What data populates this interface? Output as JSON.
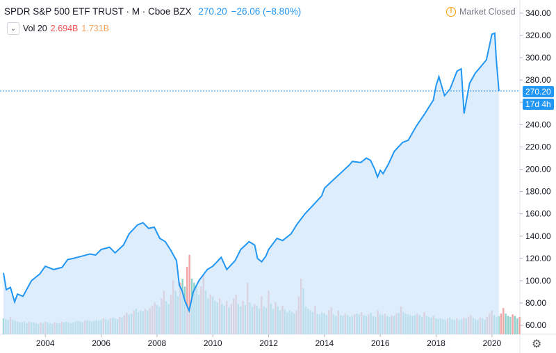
{
  "header": {
    "symbol": "SPDR S&P 500 ETF TRUST · M · Cboe BZX",
    "last": "270.20",
    "change": "−26.06 (−8.80%)"
  },
  "volume_legend": {
    "toggle_icon": "chevron-down-icon",
    "label": "Vol 20",
    "value1": "2.694B",
    "value2": "1.731B"
  },
  "market_status": {
    "icon": "alert-circle-icon",
    "text": "Market Closed"
  },
  "price_badge": "270.20",
  "countdown_badge": "17d 4h",
  "settings_icon": "gear-icon",
  "colors": {
    "line": "#2196f3",
    "fill": "#cfe6fb",
    "vol_up": "#80cbc4",
    "vol_down": "#ef9a9a",
    "axis": "#787b86"
  },
  "chart_data": {
    "type": "area",
    "x_ticks": [
      "2004",
      "2006",
      "2008",
      "2010",
      "2012",
      "2014",
      "2016",
      "2018",
      "2020"
    ],
    "y_ticks": [
      "60.00",
      "80.00",
      "100.00",
      "120.00",
      "140.00",
      "160.00",
      "180.00",
      "200.00",
      "220.00",
      "240.00",
      "260.00",
      "280.00",
      "300.00",
      "320.00",
      "340.00"
    ],
    "ylim": [
      52,
      348
    ],
    "xlim": [
      2002.5,
      2021.0
    ],
    "series": [
      {
        "values_x": [
          2002.5,
          2002.6,
          2002.75,
          2002.9,
          2003.0,
          2003.2,
          2003.5,
          2003.8,
          2004.0,
          2004.3,
          2004.6,
          2004.8,
          2005.0,
          2005.3,
          2005.6,
          2005.8,
          2006.0,
          2006.3,
          2006.5,
          2006.8,
          2007.0,
          2007.3,
          2007.5,
          2007.7,
          2007.9,
          2008.1,
          2008.3,
          2008.5,
          2008.7,
          2008.8,
          2008.9,
          2009.0,
          2009.15,
          2009.3,
          2009.5,
          2009.8,
          2010.0,
          2010.3,
          2010.5,
          2010.8,
          2011.0,
          2011.3,
          2011.5,
          2011.6,
          2011.75,
          2011.9,
          2012.0,
          2012.3,
          2012.5,
          2012.8,
          2013.0,
          2013.3,
          2013.6,
          2013.9,
          2014.0,
          2014.3,
          2014.6,
          2014.9,
          2015.0,
          2015.3,
          2015.5,
          2015.65,
          2015.8,
          2015.9,
          2016.0,
          2016.1,
          2016.3,
          2016.5,
          2016.8,
          2017.0,
          2017.3,
          2017.6,
          2017.9,
          2018.0,
          2018.1,
          2018.3,
          2018.5,
          2018.75,
          2018.9,
          2019.0,
          2019.2,
          2019.4,
          2019.6,
          2019.8,
          2020.0,
          2020.1,
          2020.15,
          2020.25
        ],
        "values": [
          107,
          92,
          94,
          81,
          88,
          86,
          100,
          106,
          113,
          110,
          112,
          119,
          120,
          122,
          124,
          123,
          128,
          130,
          125,
          132,
          142,
          150,
          152,
          147,
          148,
          138,
          135,
          127,
          118,
          96,
          91,
          82,
          73,
          90,
          100,
          110,
          113,
          121,
          110,
          118,
          128,
          135,
          132,
          120,
          117,
          122,
          128,
          138,
          136,
          142,
          150,
          160,
          168,
          176,
          183,
          190,
          197,
          204,
          207,
          206,
          210,
          208,
          200,
          193,
          199,
          196,
          205,
          216,
          224,
          226,
          239,
          250,
          262,
          275,
          283,
          266,
          272,
          288,
          290,
          250,
          277,
          286,
          292,
          298,
          321,
          322,
          300,
          270
        ]
      }
    ],
    "volume": {
      "values_x_step": 0.0833,
      "start": 2002.5,
      "values_b": [
        2.0,
        1.9,
        1.8,
        2.2,
        1.8,
        1.7,
        1.6,
        1.5,
        1.5,
        1.6,
        1.4,
        1.6,
        1.5,
        1.5,
        1.4,
        1.3,
        1.5,
        1.4,
        1.6,
        1.5,
        1.4,
        1.3,
        1.5,
        1.4,
        1.4,
        1.6,
        1.5,
        1.6,
        1.5,
        1.4,
        1.5,
        1.6,
        1.7,
        1.6,
        1.5,
        1.7,
        1.8,
        1.7,
        1.6,
        1.7,
        1.8,
        1.7,
        1.8,
        2.0,
        1.9,
        1.8,
        2.0,
        2.1,
        2.0,
        1.9,
        2.2,
        2.1,
        2.4,
        2.7,
        2.5,
        2.6,
        3.0,
        3.2,
        2.8,
        3.0,
        2.9,
        3.2,
        3.0,
        3.3,
        3.6,
        4.0,
        3.7,
        3.5,
        4.5,
        5.5,
        4.2,
        3.8,
        5.0,
        6.8,
        5.5,
        4.8,
        6.5,
        7.0,
        6.0,
        8.5,
        10.0,
        7.0,
        6.5,
        5.8,
        5.0,
        6.0,
        7.5,
        5.5,
        4.5,
        5.0,
        4.8,
        4.2,
        4.0,
        4.5,
        3.8,
        3.6,
        4.2,
        3.4,
        3.8,
        4.5,
        5.0,
        3.8,
        3.5,
        4.2,
        3.7,
        6.5,
        4.0,
        3.5,
        3.8,
        3.6,
        3.2,
        4.8,
        3.5,
        3.3,
        5.5,
        3.8,
        3.2,
        4.0,
        3.5,
        3.0,
        3.6,
        3.1,
        2.8,
        3.0,
        2.8,
        2.6,
        3.0,
        4.8,
        7.0,
        5.8,
        3.5,
        3.2,
        3.0,
        2.8,
        3.6,
        2.6,
        2.5,
        2.7,
        2.6,
        2.4,
        3.0,
        3.4,
        2.5,
        2.3,
        3.0,
        2.4,
        2.3,
        2.6,
        2.4,
        2.2,
        2.3,
        2.5,
        2.6,
        2.5,
        2.8,
        2.4,
        2.3,
        2.5,
        2.7,
        2.3,
        2.2,
        3.0,
        2.5,
        2.4,
        2.6,
        2.3,
        2.2,
        2.4,
        2.3,
        2.6,
        2.7,
        3.5,
        2.8,
        2.6,
        2.5,
        2.4,
        2.3,
        2.4,
        2.6,
        2.4,
        2.2,
        2.8,
        2.3,
        2.2,
        2.1,
        2.3,
        2.0,
        1.9,
        2.0,
        1.9,
        1.8,
        2.0,
        2.1,
        1.9,
        1.8,
        2.0,
        1.8,
        1.9,
        2.1,
        2.0,
        2.2,
        2.4,
        2.0,
        1.9,
        1.8,
        2.1,
        2.0,
        1.8,
        2.2,
        2.6,
        3.0,
        2.4,
        2.2,
        2.3,
        2.6,
        3.3,
        2.6,
        2.3,
        2.2,
        2.5,
        2.3,
        2.0,
        2.2,
        2.0,
        2.1,
        2.4,
        2.3,
        2.1,
        2.2,
        2.0,
        1.9,
        2.1,
        2.2,
        3.0,
        2.4,
        3.4
      ]
    }
  }
}
